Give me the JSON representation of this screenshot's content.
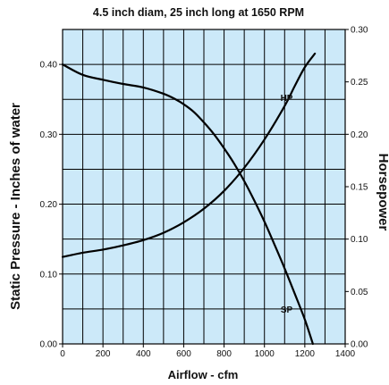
{
  "chart_data": {
    "type": "line",
    "title": "4.5 inch diam, 25 inch long at 1650 RPM",
    "xlabel": "Airflow - cfm",
    "ylabel": "Static Pressure - Inches of water",
    "y2label": "Horsepower",
    "xlim": [
      0,
      1400
    ],
    "ylim": [
      0,
      0.45
    ],
    "y2lim": [
      0,
      0.3
    ],
    "xticks": [
      "0",
      "200",
      "400",
      "600",
      "800",
      "1000",
      "1200",
      "1400"
    ],
    "yticks": [
      "0.00",
      "0.10",
      "0.20",
      "0.30",
      "0.40"
    ],
    "y2ticks": [
      "0.00",
      "0.05",
      "0.10",
      "0.15",
      "0.20",
      "0.25",
      "0.30"
    ],
    "grid": true,
    "plot_background": "#cce9f9",
    "series": [
      {
        "name": "SP",
        "axis": "left",
        "x": [
          0,
          100,
          200,
          300,
          400,
          500,
          560,
          600,
          650,
          700,
          750,
          800,
          850,
          900,
          950,
          1000,
          1050,
          1100,
          1150,
          1200,
          1240
        ],
        "values": [
          0.4,
          0.385,
          0.378,
          0.372,
          0.367,
          0.358,
          0.35,
          0.343,
          0.332,
          0.317,
          0.3,
          0.28,
          0.258,
          0.233,
          0.205,
          0.175,
          0.142,
          0.108,
          0.072,
          0.035,
          0.0
        ]
      },
      {
        "name": "HP",
        "axis": "right",
        "x": [
          0,
          100,
          200,
          300,
          400,
          500,
          600,
          700,
          800,
          900,
          1000,
          1100,
          1150,
          1200,
          1250
        ],
        "values": [
          0.083,
          0.087,
          0.09,
          0.094,
          0.099,
          0.106,
          0.116,
          0.129,
          0.146,
          0.168,
          0.195,
          0.227,
          0.246,
          0.264,
          0.277
        ]
      }
    ]
  }
}
